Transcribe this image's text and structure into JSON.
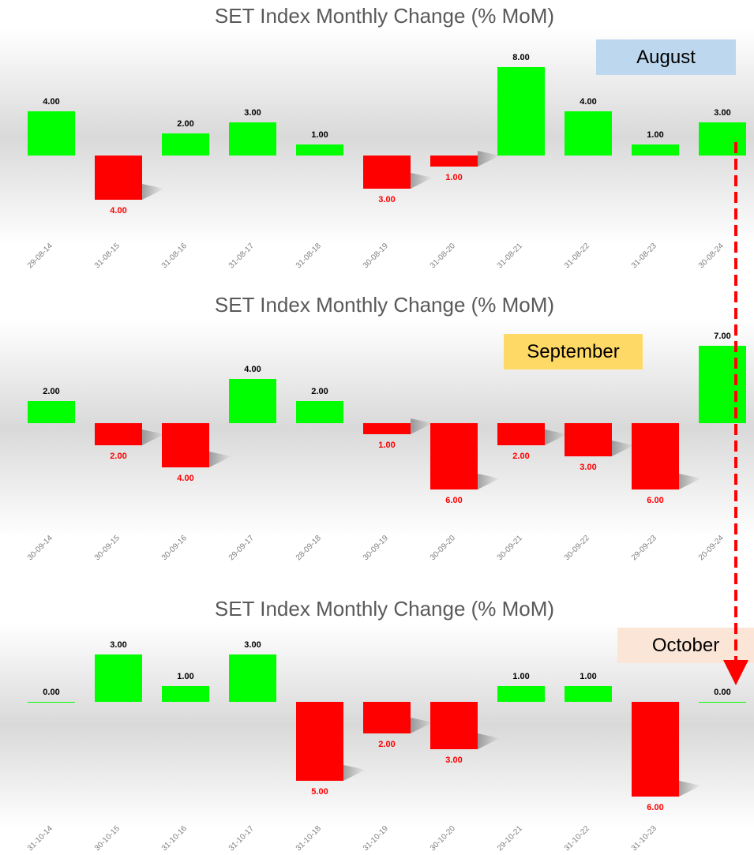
{
  "chart_data": [
    {
      "type": "bar",
      "title": "SET Index Monthly Change (% MoM)",
      "annotation": "August",
      "annotation_color": "#bdd7ee",
      "categories": [
        "29-08-14",
        "31-08-15",
        "31-08-16",
        "31-08-17",
        "31-08-18",
        "30-08-19",
        "31-08-20",
        "31-08-21",
        "31-08-22",
        "31-08-23",
        "30-08-24"
      ],
      "values": [
        4,
        -4,
        2,
        3,
        1,
        -3,
        -1,
        8,
        4,
        1,
        3
      ],
      "value_labels": [
        "4.00",
        "4.00",
        "2.00",
        "3.00",
        "1.00",
        "3.00",
        "1.00",
        "8.00",
        "4.00",
        "1.00",
        "3.00"
      ],
      "positive_color": "#00ff00",
      "negative_color": "#ff0000",
      "ylim": [
        -6,
        10
      ]
    },
    {
      "type": "bar",
      "title": "SET Index Monthly Change (% MoM)",
      "annotation": "September",
      "annotation_color": "#ffd966",
      "categories": [
        "30-09-14",
        "30-09-15",
        "30-09-16",
        "29-09-17",
        "28-09-18",
        "30-09-19",
        "30-09-20",
        "30-09-21",
        "30-09-22",
        "29-09-23",
        "20-09-24"
      ],
      "values": [
        2,
        -2,
        -4,
        4,
        2,
        -1,
        -6,
        -2,
        -3,
        -6,
        7
      ],
      "value_labels": [
        "2.00",
        "2.00",
        "4.00",
        "4.00",
        "2.00",
        "1.00",
        "6.00",
        "2.00",
        "3.00",
        "6.00",
        "7.00"
      ],
      "positive_color": "#00ff00",
      "negative_color": "#ff0000",
      "ylim": [
        -8,
        8
      ]
    },
    {
      "type": "bar",
      "title": "SET Index Monthly Change (% MoM)",
      "annotation": "October",
      "annotation_color": "#fbe5d6",
      "categories": [
        "31-10-14",
        "30-10-15",
        "31-10-16",
        "31-10-17",
        "31-10-18",
        "31-10-19",
        "30-10-20",
        "29-10-21",
        "31-10-22",
        "31-10-23",
        null
      ],
      "values": [
        0,
        3,
        1,
        3,
        -5,
        -2,
        -3,
        1,
        1,
        -6,
        0
      ],
      "value_labels": [
        "0.00",
        "3.00",
        "1.00",
        "3.00",
        "5.00",
        "2.00",
        "3.00",
        "1.00",
        "1.00",
        "6.00",
        "0.00"
      ],
      "positive_color": "#00ff00",
      "negative_color": "#ff0000",
      "ylim": [
        -7,
        4
      ]
    }
  ]
}
